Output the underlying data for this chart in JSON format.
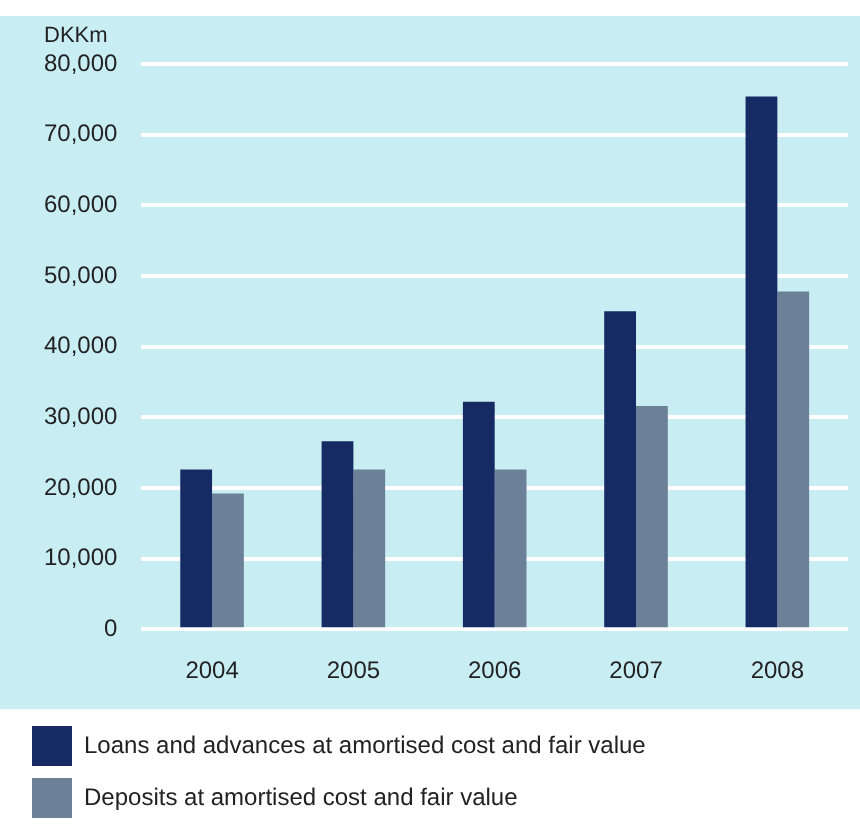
{
  "chart_data": {
    "type": "bar",
    "ylabel": "DKKm",
    "categories": [
      "2004",
      "2005",
      "2006",
      "2007",
      "2008"
    ],
    "series": [
      {
        "name": "Loans and advances at amortised cost and fair value",
        "color": "#162a64",
        "values": [
          22600,
          26600,
          32200,
          45000,
          75400
        ]
      },
      {
        "name": "Deposits at amortised cost and fair value",
        "color": "#6c8197",
        "values": [
          19200,
          22600,
          22600,
          31600,
          47800
        ]
      }
    ],
    "ylim": [
      0,
      80000
    ],
    "yticks": [
      0,
      {
        "value": 10000,
        "label": "10,000"
      },
      {
        "value": 20000,
        "label": "20,000"
      },
      {
        "value": 30000,
        "label": "30,000"
      },
      {
        "value": 40000,
        "label": "40,000"
      },
      {
        "value": 50000,
        "label": "50,000"
      },
      {
        "value": 60000,
        "label": "60,000"
      },
      {
        "value": 70000,
        "label": "70,000"
      },
      {
        "value": 80000,
        "label": "80,000"
      }
    ],
    "grid": "y",
    "legend": "bottom"
  }
}
